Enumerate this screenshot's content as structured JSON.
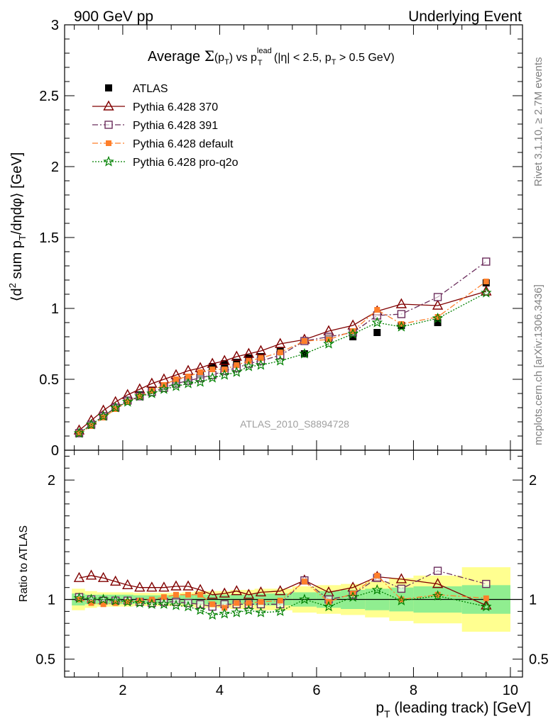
{
  "header": {
    "left": "900 GeV pp",
    "right": "Underlying Event"
  },
  "side_notes": {
    "rivet": "Rivet 3.1.10, ≥ 2.7M events",
    "mcplots": "mcplots.cern.ch [arXiv:1306.3436]"
  },
  "watermark": "ATLAS_2010_S8894728",
  "title": {
    "prefix": "Average ",
    "sigma": "Σ",
    "sigma_arg": "(p",
    "sigma_sub": "T",
    "sigma_close": ")",
    "vs": " vs p",
    "lead_sup": "lead",
    "lead_sub": "T",
    "cuts": " (|η| < 2.5, p",
    "cut_sub": "T",
    "cut_rest": " > 0.5 GeV)"
  },
  "chart_data": [
    {
      "type": "scatter",
      "panel": "main",
      "ylabel": {
        "a": "⟨d",
        "sup": "2",
        "b": " sum p",
        "sub": "T",
        "c": "/dηdφ⟩ [GeV]"
      },
      "xlim": [
        0.8,
        10.25
      ],
      "ylim": [
        0,
        3
      ],
      "y_ticks": [
        "0",
        "0.5",
        "1",
        "1.5",
        "2",
        "2.5",
        "3"
      ],
      "legend_position": "top-left",
      "x": [
        1.1,
        1.35,
        1.6,
        1.85,
        2.1,
        2.35,
        2.6,
        2.85,
        3.1,
        3.35,
        3.6,
        3.85,
        4.1,
        4.35,
        4.6,
        4.85,
        5.25,
        5.75,
        6.25,
        6.75,
        7.25,
        7.75,
        8.5,
        9.5
      ],
      "series": [
        {
          "name": "ATLAS",
          "color": "#000000",
          "marker": "filled-square",
          "values": [
            0.12,
            0.18,
            0.24,
            0.3,
            0.35,
            0.39,
            0.42,
            0.45,
            0.48,
            0.5,
            0.53,
            0.59,
            0.61,
            0.62,
            0.65,
            0.66,
            0.7,
            0.68,
            0.79,
            0.8,
            0.83,
            0.88,
            0.9,
            1.18
          ]
        },
        {
          "name": "Pythia 6.428 370",
          "color": "#800000",
          "marker": "open-triangle",
          "line": "solid",
          "values": [
            0.14,
            0.21,
            0.28,
            0.34,
            0.39,
            0.43,
            0.47,
            0.5,
            0.53,
            0.56,
            0.58,
            0.61,
            0.63,
            0.66,
            0.68,
            0.7,
            0.75,
            0.78,
            0.84,
            0.88,
            0.98,
            1.03,
            1.02,
            1.12
          ]
        },
        {
          "name": "Pythia 6.428 391",
          "color": "#6b2d5c",
          "marker": "open-square",
          "line": "dash-dot",
          "values": [
            0.12,
            0.18,
            0.24,
            0.3,
            0.35,
            0.38,
            0.41,
            0.44,
            0.47,
            0.49,
            0.51,
            0.53,
            0.56,
            0.58,
            0.61,
            0.63,
            0.67,
            0.77,
            0.8,
            0.83,
            0.95,
            0.96,
            1.08,
            1.33
          ]
        },
        {
          "name": "Pythia 6.428 default",
          "color": "#ff7f2a",
          "marker": "filled-square-small",
          "line": "dash-dot",
          "values": [
            0.12,
            0.17,
            0.23,
            0.29,
            0.34,
            0.38,
            0.42,
            0.46,
            0.5,
            0.52,
            0.55,
            0.57,
            0.57,
            0.6,
            0.63,
            0.65,
            0.69,
            0.77,
            0.78,
            0.84,
            0.99,
            0.89,
            0.94,
            1.19
          ]
        },
        {
          "name": "Pythia 6.428 pro-q2o",
          "color": "#008000",
          "marker": "open-star",
          "line": "dotted",
          "values": [
            0.12,
            0.18,
            0.24,
            0.3,
            0.34,
            0.38,
            0.4,
            0.43,
            0.45,
            0.47,
            0.48,
            0.51,
            0.53,
            0.55,
            0.59,
            0.6,
            0.63,
            0.68,
            0.75,
            0.82,
            0.9,
            0.87,
            0.93,
            1.11
          ]
        }
      ]
    },
    {
      "type": "scatter",
      "panel": "ratio",
      "ylabel": "Ratio to ATLAS",
      "xlabel": {
        "a": "p",
        "sub": "T",
        "b": " (leading track) [GeV]"
      },
      "xlim": [
        0.8,
        10.25
      ],
      "ylim": [
        0.35,
        2.25
      ],
      "x_ticks": [
        "2",
        "4",
        "6",
        "8",
        "10"
      ],
      "y_ticks": [
        "0.5",
        "1",
        "2"
      ],
      "band_colors": {
        "inner": "#90ee90",
        "outer": "#ffff90"
      },
      "bands": {
        "x_edges": [
          0.95,
          1.22,
          1.47,
          1.72,
          1.97,
          2.22,
          2.47,
          2.72,
          2.97,
          3.22,
          3.47,
          3.72,
          3.97,
          4.22,
          4.47,
          4.72,
          4.97,
          5.5,
          6.0,
          6.5,
          7.0,
          7.5,
          8.0,
          9.0,
          10.0
        ],
        "inner": [
          0.05,
          0.04,
          0.04,
          0.04,
          0.04,
          0.035,
          0.035,
          0.035,
          0.035,
          0.04,
          0.04,
          0.04,
          0.04,
          0.04,
          0.04,
          0.05,
          0.05,
          0.06,
          0.07,
          0.08,
          0.09,
          0.1,
          0.11,
          0.12
        ],
        "outer": [
          0.09,
          0.07,
          0.06,
          0.06,
          0.06,
          0.055,
          0.055,
          0.055,
          0.055,
          0.06,
          0.07,
          0.07,
          0.07,
          0.08,
          0.08,
          0.09,
          0.09,
          0.11,
          0.12,
          0.13,
          0.15,
          0.18,
          0.2,
          0.27
        ]
      },
      "series": [
        {
          "name": "Pythia 6.428 370",
          "values": [
            1.18,
            1.2,
            1.18,
            1.15,
            1.12,
            1.1,
            1.1,
            1.1,
            1.11,
            1.11,
            1.08,
            1.04,
            1.05,
            1.07,
            1.04,
            1.06,
            1.07,
            1.16,
            1.06,
            1.1,
            1.19,
            1.17,
            1.13,
            0.95
          ]
        },
        {
          "name": "Pythia 6.428 391",
          "values": [
            1.02,
            1.0,
            0.99,
            0.99,
            0.99,
            0.98,
            0.97,
            0.98,
            0.98,
            0.97,
            0.96,
            0.94,
            0.96,
            0.96,
            0.96,
            0.96,
            0.96,
            1.16,
            1.0,
            1.04,
            1.18,
            1.09,
            1.24,
            1.13
          ]
        },
        {
          "name": "Pythia 6.428 default",
          "values": [
            1.0,
            0.97,
            0.96,
            0.97,
            0.98,
            0.99,
            1.0,
            1.02,
            1.04,
            1.04,
            1.04,
            0.96,
            0.93,
            0.97,
            0.97,
            0.98,
            0.99,
            1.15,
            0.98,
            1.05,
            1.2,
            1.0,
            1.04,
            1.01
          ]
        },
        {
          "name": "Pythia 6.428 pro-q2o",
          "values": [
            1.01,
            1.0,
            1.0,
            0.99,
            0.98,
            0.97,
            0.96,
            0.96,
            0.95,
            0.94,
            0.91,
            0.87,
            0.88,
            0.89,
            0.91,
            0.89,
            0.9,
            1.0,
            0.94,
            1.02,
            1.08,
            0.99,
            1.03,
            0.94
          ]
        }
      ]
    }
  ]
}
